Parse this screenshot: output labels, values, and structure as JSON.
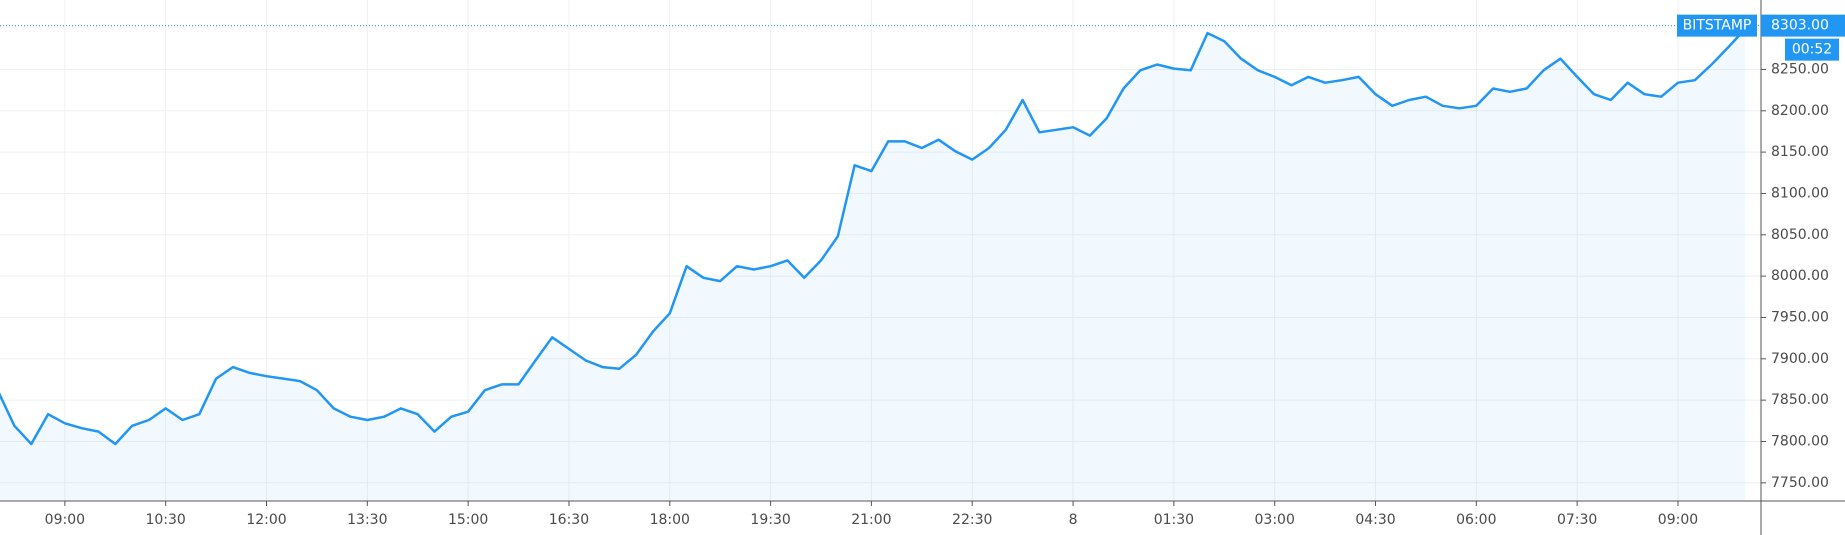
{
  "chart_data": {
    "type": "line",
    "x": [
      "08:00",
      "08:15",
      "08:30",
      "08:45",
      "09:00",
      "09:15",
      "09:30",
      "09:45",
      "10:00",
      "10:15",
      "10:30",
      "10:45",
      "11:00",
      "11:15",
      "11:30",
      "11:45",
      "12:00",
      "12:15",
      "12:30",
      "12:45",
      "13:00",
      "13:15",
      "13:30",
      "13:45",
      "14:00",
      "14:15",
      "14:30",
      "14:45",
      "15:00",
      "15:15",
      "15:30",
      "15:45",
      "16:00",
      "16:15",
      "16:30",
      "16:45",
      "17:00",
      "17:15",
      "17:30",
      "17:45",
      "18:00",
      "18:15",
      "18:30",
      "18:45",
      "19:00",
      "19:15",
      "19:30",
      "19:45",
      "20:00",
      "20:15",
      "20:30",
      "20:45",
      "21:00",
      "21:15",
      "21:30",
      "21:45",
      "22:00",
      "22:15",
      "22:30",
      "22:45",
      "23:00",
      "23:15",
      "23:30",
      "23:45",
      "8",
      "00:15",
      "00:30",
      "00:45",
      "01:00",
      "01:15",
      "01:30",
      "01:45",
      "02:00",
      "02:15",
      "02:30",
      "02:45",
      "03:00",
      "03:15",
      "03:30",
      "03:45",
      "04:00",
      "04:15",
      "04:30",
      "04:45",
      "05:00",
      "05:15",
      "05:30",
      "05:45",
      "06:00",
      "06:15",
      "06:30",
      "06:45",
      "07:00",
      "07:15",
      "07:30",
      "07:45",
      "08:00",
      "08:15",
      "08:30",
      "08:45",
      "09:00",
      "09:15",
      "09:30",
      "09:45",
      "10:00"
    ],
    "series": [
      {
        "name": "BITSTAMP",
        "color": "#2196f3",
        "values": [
          7862,
          7819,
          7797,
          7833,
          7822,
          7816,
          7812,
          7797,
          7819,
          7826,
          7840,
          7826,
          7833,
          7876,
          7890,
          7883,
          7879,
          7876,
          7873,
          7862,
          7840,
          7830,
          7826,
          7830,
          7840,
          7833,
          7812,
          7830,
          7836,
          7862,
          7869,
          7869,
          7898,
          7926,
          7912,
          7898,
          7890,
          7888,
          7905,
          7933,
          7955,
          8012,
          7998,
          7994,
          8012,
          8008,
          8012,
          8019,
          7998,
          8019,
          8048,
          8134,
          8127,
          8163,
          8163,
          8155,
          8165,
          8151,
          8141,
          8155,
          8177,
          8213,
          8174,
          8177,
          8180,
          8170,
          8191,
          8227,
          8249,
          8256,
          8251,
          8249,
          8294,
          8284,
          8263,
          8249,
          8241,
          8231,
          8241,
          8234,
          8237,
          8241,
          8220,
          8206,
          8213,
          8217,
          8206,
          8203,
          8206,
          8227,
          8223,
          8227,
          8249,
          8263,
          8241,
          8220,
          8213,
          8234,
          8220,
          8217,
          8234,
          8237,
          8256,
          8277,
          8299
        ]
      }
    ],
    "ylim": [
      7728,
      8334
    ],
    "yticks": [
      {
        "value": 7750,
        "label": "7750.00"
      },
      {
        "value": 7800,
        "label": "7800.00"
      },
      {
        "value": 7850,
        "label": "7850.00"
      },
      {
        "value": 7900,
        "label": "7900.00"
      },
      {
        "value": 7950,
        "label": "7950.00"
      },
      {
        "value": 8000,
        "label": "8000.00"
      },
      {
        "value": 8050,
        "label": "8050.00"
      },
      {
        "value": 8100,
        "label": "8100.00"
      },
      {
        "value": 8150,
        "label": "8150.00"
      },
      {
        "value": 8200,
        "label": "8200.00"
      },
      {
        "value": 8250,
        "label": "8250.00"
      }
    ],
    "xticks": [
      "09:00",
      "10:30",
      "12:00",
      "13:30",
      "15:00",
      "16:30",
      "18:00",
      "19:30",
      "21:00",
      "22:30",
      "8",
      "01:30",
      "03:00",
      "04:30",
      "06:00",
      "07:30",
      "09:00"
    ],
    "last_price": {
      "value": 8303,
      "label": "8303.00"
    },
    "countdown": "00:52",
    "grid": true
  }
}
